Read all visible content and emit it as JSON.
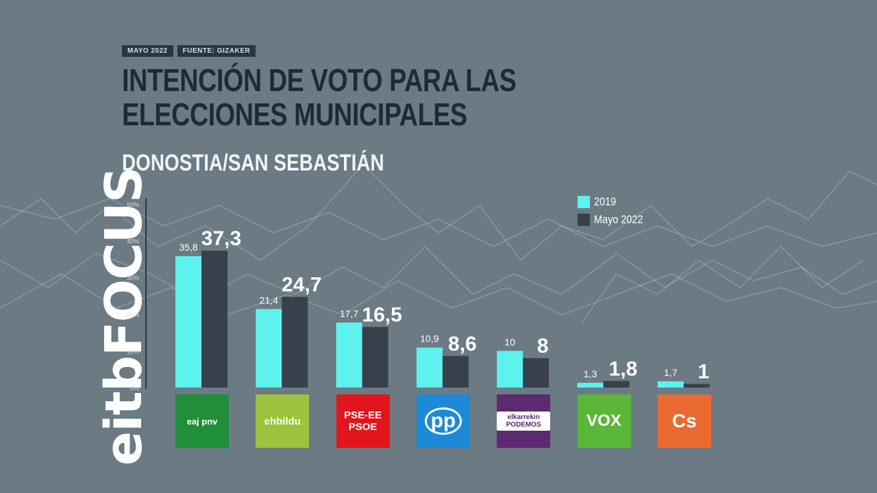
{
  "header": {
    "tag_date": "MAYO 2022",
    "tag_source": "FUENTE: GIZAKER"
  },
  "brand": {
    "name": "eitbFOCUS"
  },
  "chart_data": {
    "type": "bar",
    "title": "INTENCIÓN DE VOTO PARA LAS ELECCIONES MUNICIPALES",
    "subtitle": "DONOSTIA/SAN SEBASTIÁN",
    "categories": [
      "EAJ-PNV",
      "EH Bildu",
      "PSE-EE PSOE",
      "PP",
      "Elkarrekin Podemos",
      "VOX",
      "Cs"
    ],
    "series": [
      {
        "name": "2019",
        "values": [
          35.8,
          21.4,
          17.7,
          10.9,
          10,
          1.3,
          1.7
        ],
        "labels": [
          "35,8",
          "21,4",
          "17,7",
          "10,9",
          "10",
          "1,3",
          "1,7"
        ],
        "color": "#5ef2ee"
      },
      {
        "name": "Mayo 2022",
        "values": [
          37.3,
          24.7,
          16.5,
          8.6,
          8,
          1.8,
          1
        ],
        "labels": [
          "37,3",
          "24,7",
          "16,5",
          "8,6",
          "8",
          "1,8",
          "1"
        ],
        "color": "#37404b"
      }
    ],
    "yticks": [
      "0%",
      "10%",
      "20%",
      "30%",
      "40%",
      "50%"
    ],
    "ylim": [
      0,
      50
    ],
    "grid": false,
    "legend_position": "top-right"
  },
  "logos": [
    {
      "text": "eaj pnv",
      "color": "#1f8f3a",
      "icon": "pnv-logo"
    },
    {
      "text": "ehbildu",
      "color": "#9bc33b",
      "icon": "ehbildu-logo"
    },
    {
      "text": "PSE-EE PSOE",
      "color": "#e3151c",
      "icon": "psoe-logo"
    },
    {
      "text": "pp",
      "color": "#1c8ad6",
      "icon": "pp-logo"
    },
    {
      "text": "elkarrekin PODEMOS",
      "color": "#5c2a6e",
      "icon": "podemos-logo"
    },
    {
      "text": "VOX",
      "color": "#5ab73a",
      "icon": "vox-logo"
    },
    {
      "text": "Cs",
      "color": "#ea6a32",
      "icon": "cs-logo"
    }
  ]
}
